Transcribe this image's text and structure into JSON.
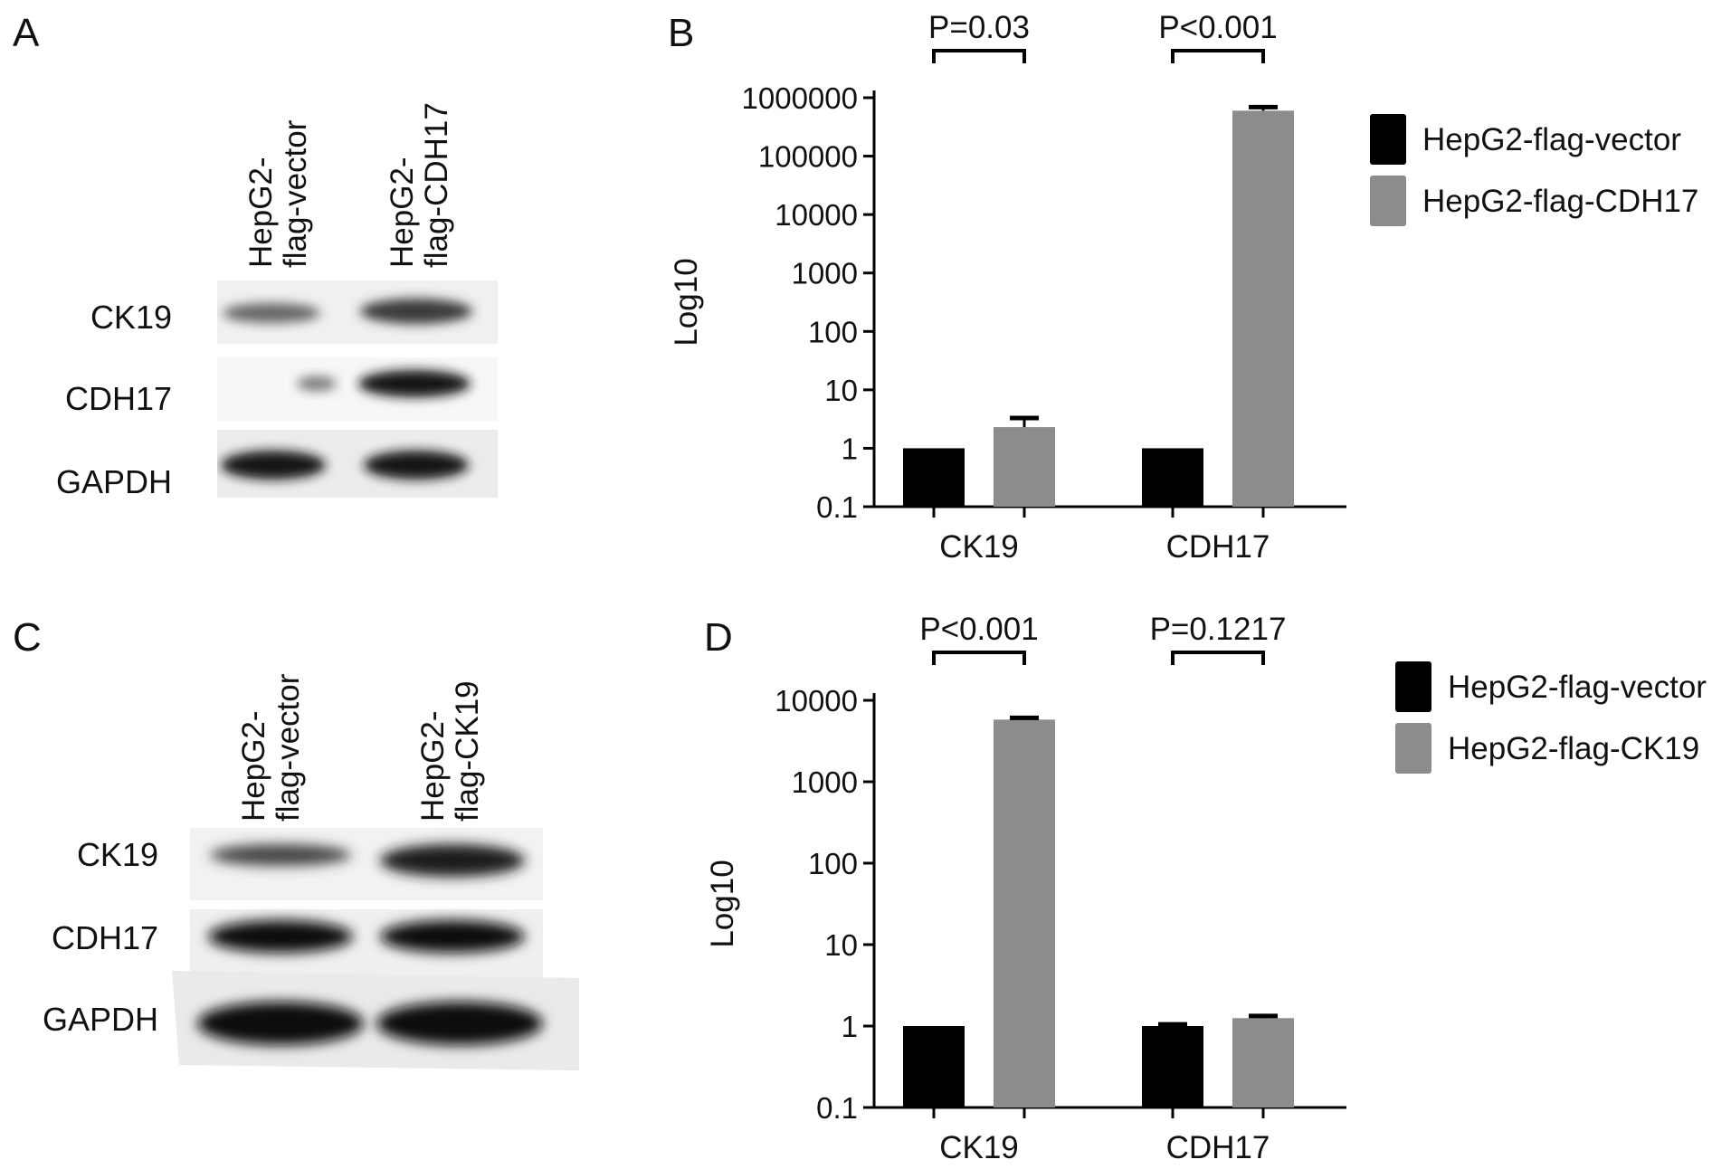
{
  "panels": {
    "A": "A",
    "B": "B",
    "C": "C",
    "D": "D"
  },
  "blots": [
    {
      "lanes": [
        [
          "HepG2-",
          "flag-vector"
        ],
        [
          "HepG2-",
          "flag-CDH17"
        ]
      ],
      "proteins": [
        "CK19",
        "CDH17",
        "GAPDH"
      ]
    },
    {
      "lanes": [
        [
          "HepG2-",
          "flag-vector"
        ],
        [
          "HepG2-",
          "flag-CK19"
        ]
      ],
      "proteins": [
        "CK19",
        "CDH17",
        "GAPDH"
      ]
    }
  ],
  "colors": {
    "vector": "#000000",
    "overexpression": "#8c8c8c"
  },
  "chart_data": [
    {
      "type": "bar",
      "panel": "B",
      "yscale": "log",
      "ylabel": "Log10",
      "ylim": [
        0.1,
        1000000
      ],
      "yticks": [
        "0.1",
        "1",
        "10",
        "100",
        "1000",
        "10000",
        "100000",
        "1000000"
      ],
      "categories": [
        "CK19",
        "CDH17"
      ],
      "series": [
        {
          "name": "HepG2-flag-vector",
          "values": [
            1,
            1
          ],
          "errors": [
            0,
            0
          ],
          "color": "#000000"
        },
        {
          "name": "HepG2-flag-CDH17",
          "values": [
            2.3,
            600000
          ],
          "errors": [
            1.0,
            90000
          ],
          "color": "#8c8c8c"
        }
      ],
      "annotations": [
        "P=0.03",
        "P<0.001"
      ]
    },
    {
      "type": "bar",
      "panel": "D",
      "yscale": "log",
      "ylabel": "Log10",
      "ylim": [
        0.1,
        10000
      ],
      "yticks": [
        "0.1",
        "1",
        "10",
        "100",
        "1000",
        "10000"
      ],
      "categories": [
        "CK19",
        "CDH17"
      ],
      "series": [
        {
          "name": "HepG2-flag-vector",
          "values": [
            1,
            1
          ],
          "errors": [
            0,
            0.05
          ],
          "color": "#000000"
        },
        {
          "name": "HepG2-flag-CK19",
          "values": [
            5800,
            1.25
          ],
          "errors": [
            300,
            0.08
          ],
          "color": "#8c8c8c"
        }
      ],
      "annotations": [
        "P<0.001",
        "P=0.1217"
      ]
    }
  ]
}
